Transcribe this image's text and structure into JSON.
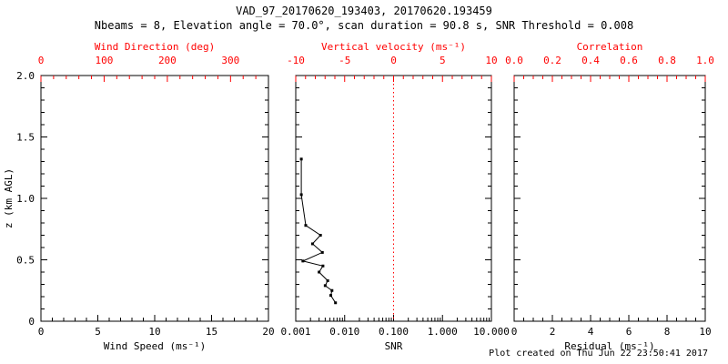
{
  "title": "VAD_97_20170620_193403, 20170620.193459",
  "subtitle": "Nbeams = 8, Elevation angle = 70.0°, scan duration = 90.8 s, SNR Threshold = 0.008",
  "footer": "Plot created on Thu Jun 22 23:50:41 2017",
  "colors": {
    "axis": "#000000",
    "secondary_axis": "#ff0000",
    "data": "#000000"
  },
  "y_axis": {
    "label": "z (km AGL)",
    "lim": [
      0,
      2
    ],
    "ticks": [
      0,
      0.5,
      1.0,
      1.5,
      2.0
    ],
    "tick_labels": [
      "0",
      "0.5",
      "1.0",
      "1.5",
      "2.0"
    ],
    "minor_divs": 5
  },
  "chart_data": [
    {
      "type": "line",
      "name": "wind-speed-panel",
      "xlabel": "Wind Speed (ms⁻¹)",
      "xscale": "linear",
      "xlim": [
        0,
        20
      ],
      "xticks": [
        0,
        5,
        10,
        15,
        20
      ],
      "xtick_labels": [
        "0",
        "5",
        "10",
        "15",
        "20"
      ],
      "xminor_divs": 5,
      "top": {
        "label": "Wind Direction (deg)",
        "lim": [
          0,
          360
        ],
        "ticks": [
          0,
          100,
          200,
          300
        ],
        "tick_labels": [
          "0",
          "100",
          "200",
          "300"
        ],
        "minor_divs": 5
      },
      "series": []
    },
    {
      "type": "line",
      "name": "snr-panel",
      "xlabel": "SNR",
      "xscale": "log",
      "xlim": [
        0.001,
        10
      ],
      "xticks": [
        0.001,
        0.01,
        0.1,
        1,
        10
      ],
      "xtick_labels": [
        "0.001",
        "0.010",
        "0.100",
        "1.000",
        "10.000"
      ],
      "top": {
        "label": "Vertical velocity (ms⁻¹)",
        "lim": [
          -10,
          10
        ],
        "ticks": [
          -10,
          -5,
          0,
          5,
          10
        ],
        "tick_labels": [
          "-10",
          "-5",
          "0",
          "5",
          "10"
        ],
        "minor_divs": 5
      },
      "refline": {
        "axis": "top",
        "value": 0,
        "color": "#ff0000",
        "style": "dotted"
      },
      "series": [
        {
          "name": "snr-profile",
          "color": "#000000",
          "marker": "square",
          "points": [
            [
              0.0013,
              1.32
            ],
            [
              0.0013,
              1.03
            ],
            [
              0.0016,
              0.78
            ],
            [
              0.0032,
              0.7
            ],
            [
              0.0022,
              0.63
            ],
            [
              0.0035,
              0.56
            ],
            [
              0.0014,
              0.49
            ],
            [
              0.0036,
              0.45
            ],
            [
              0.003,
              0.4
            ],
            [
              0.0045,
              0.33
            ],
            [
              0.004,
              0.29
            ],
            [
              0.0055,
              0.25
            ],
            [
              0.0052,
              0.21
            ],
            [
              0.0065,
              0.15
            ]
          ]
        }
      ]
    },
    {
      "type": "line",
      "name": "residual-panel",
      "xlabel": "Residual (ms⁻¹)",
      "xscale": "linear",
      "xlim": [
        0,
        10
      ],
      "xticks": [
        0,
        2,
        4,
        6,
        8,
        10
      ],
      "xtick_labels": [
        "0",
        "2",
        "4",
        "6",
        "8",
        "10"
      ],
      "xminor_divs": 4,
      "top": {
        "label": "Correlation",
        "lim": [
          0,
          1
        ],
        "ticks": [
          0,
          0.2,
          0.4,
          0.6,
          0.8,
          1.0
        ],
        "tick_labels": [
          "0.0",
          "0.2",
          "0.4",
          "0.6",
          "0.8",
          "1.0"
        ],
        "minor_divs": 4
      },
      "series": []
    }
  ]
}
